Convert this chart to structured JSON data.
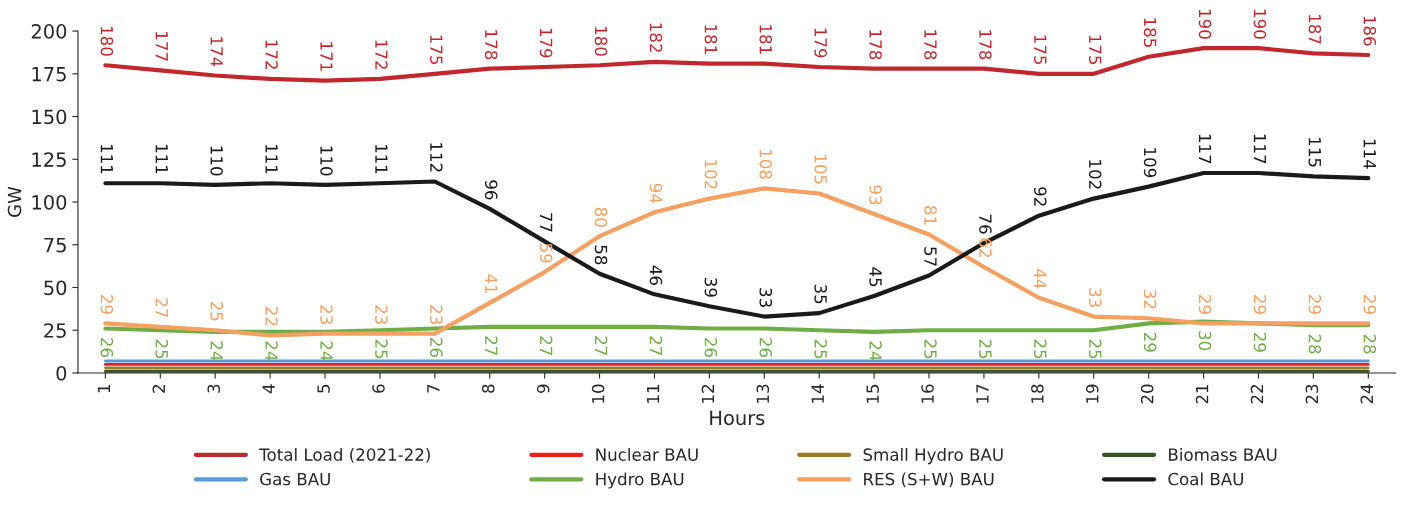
{
  "chart_data": {
    "type": "line",
    "xlabel": "Hours",
    "ylabel": "GW",
    "categories": [
      "1",
      "2",
      "3",
      "4",
      "5",
      "6",
      "7",
      "8",
      "9",
      "10",
      "11",
      "12",
      "13",
      "14",
      "15",
      "16",
      "17",
      "18",
      "19",
      "20",
      "21",
      "22",
      "23",
      "24"
    ],
    "ylim": [
      0,
      200
    ],
    "yticks": [
      0,
      25,
      50,
      75,
      100,
      125,
      150,
      175,
      200
    ],
    "grid": false,
    "legend": "bottom",
    "marker": "none",
    "line_style": "solid",
    "series": [
      {
        "name": "Total Load (2021-22)",
        "color": "#c0282d",
        "values": [
          180,
          177,
          174,
          172,
          171,
          172,
          175,
          178,
          179,
          180,
          182,
          181,
          181,
          179,
          178,
          178,
          178,
          175,
          175,
          185,
          190,
          190,
          187,
          186
        ],
        "value_labels": [
          "180",
          "177",
          "174",
          "172",
          "171",
          "172",
          "175",
          "178",
          "179",
          "180",
          "182",
          "181",
          "181",
          "179",
          "178",
          "178",
          "178",
          "175",
          "175",
          "185",
          "190",
          "190",
          "187",
          "186"
        ]
      },
      {
        "name": "Nuclear BAU",
        "color": "#ee1c1c",
        "values": [
          5,
          5,
          5,
          5,
          5,
          5,
          5,
          5,
          5,
          5,
          5,
          5,
          5,
          5,
          5,
          5,
          5,
          5,
          5,
          5,
          5,
          5,
          5,
          5
        ]
      },
      {
        "name": "Small Hydro BAU",
        "color": "#9c7a28",
        "values": [
          3,
          3,
          3,
          3,
          3,
          3,
          3,
          3,
          3,
          3,
          3,
          3,
          3,
          3,
          3,
          3,
          3,
          3,
          3,
          3,
          3,
          3,
          3,
          3
        ]
      },
      {
        "name": "Biomass BAU",
        "color": "#375623",
        "values": [
          1,
          1,
          1,
          1,
          1,
          1,
          1,
          1,
          1,
          1,
          1,
          1,
          1,
          1,
          1,
          1,
          1,
          1,
          1,
          1,
          1,
          1,
          1,
          1
        ]
      },
      {
        "name": "Gas BAU",
        "color": "#5b9bd5",
        "values": [
          7,
          7,
          7,
          7,
          7,
          7,
          7,
          7,
          7,
          7,
          7,
          7,
          7,
          7,
          7,
          7,
          7,
          7,
          7,
          7,
          7,
          7,
          7,
          7
        ]
      },
      {
        "name": "Hydro BAU",
        "color": "#70ad47",
        "values": [
          26,
          25,
          24,
          24,
          24,
          25,
          26,
          27,
          27,
          27,
          27,
          26,
          26,
          25,
          24,
          25,
          25,
          25,
          25,
          29,
          30,
          29,
          28,
          28
        ],
        "value_labels": [
          "26",
          "25",
          "24",
          "24",
          "24",
          "25",
          "26",
          "27",
          "27",
          "27",
          "27",
          "26",
          "26",
          "25",
          "24",
          "25",
          "25",
          "25",
          "25",
          "29",
          "30",
          "29",
          "28",
          "28"
        ]
      },
      {
        "name": "RES (S+W) BAU",
        "color": "#f4a060",
        "values": [
          29,
          27,
          25,
          22,
          23,
          23,
          23,
          41,
          59,
          80,
          94,
          102,
          108,
          105,
          93,
          81,
          62,
          44,
          33,
          32,
          29,
          29,
          29,
          29
        ],
        "value_labels": [
          "29",
          "27",
          "25",
          "22",
          "23",
          "23",
          "23",
          "41",
          "59",
          "80",
          "94",
          "102",
          "108",
          "105",
          "93",
          "81",
          "62",
          "44",
          "33",
          "32",
          "29",
          "29",
          "29",
          "29"
        ]
      },
      {
        "name": "Coal BAU",
        "color": "#1a1a1a",
        "values": [
          111,
          111,
          110,
          111,
          110,
          111,
          112,
          96,
          77,
          58,
          46,
          39,
          33,
          35,
          45,
          57,
          76,
          92,
          102,
          109,
          117,
          117,
          115,
          114
        ],
        "value_labels": [
          "111",
          "111",
          "110",
          "111",
          "110",
          "111",
          "112",
          "96",
          "77",
          "58",
          "46",
          "39",
          "33",
          "35",
          "45",
          "57",
          "76",
          "92",
          "102",
          "109",
          "117",
          "117",
          "115",
          "114"
        ]
      }
    ]
  }
}
